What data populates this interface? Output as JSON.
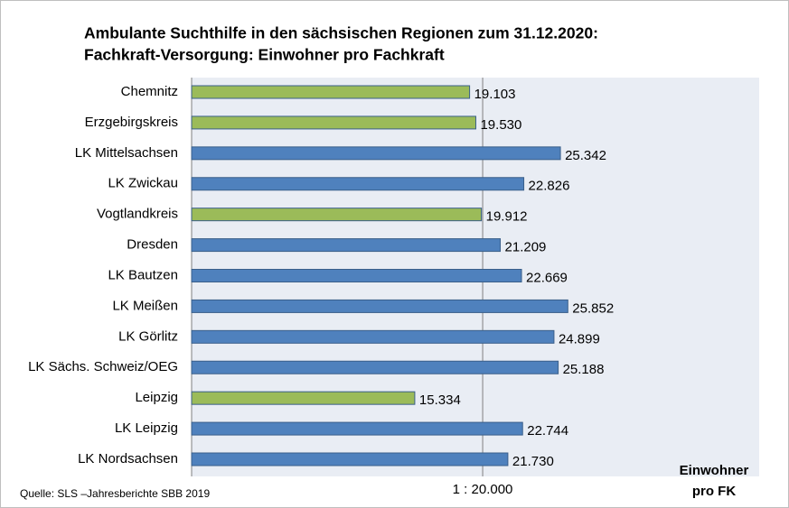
{
  "chart_data": {
    "type": "bar",
    "orientation": "horizontal",
    "title": "Ambulante Suchthilfe in den sächsischen Regionen zum 31.12.2020:",
    "subtitle": "Fachkraft-Versorgung: Einwohner pro Fachkraft",
    "categories": [
      "Chemnitz",
      "Erzgebirgskreis",
      "LK Mittelsachsen",
      "LK Zwickau",
      "Vogtlandkreis",
      "Dresden",
      "LK Bautzen",
      "LK Meißen",
      "LK Görlitz",
      "LK Sächs. Schweiz/OEG",
      "Leipzig",
      "LK Leipzig",
      "LK Nordsachsen"
    ],
    "values": [
      19103,
      19530,
      25342,
      22826,
      19912,
      21209,
      22669,
      25852,
      24899,
      25188,
      15334,
      22744,
      21730
    ],
    "value_labels": [
      "19.103",
      "19.530",
      "25.342",
      "22.826",
      "19.912",
      "21.209",
      "22.669",
      "25.852",
      "24.899",
      "25.188",
      "15.334",
      "22.744",
      "21.730"
    ],
    "colors": [
      "#9bbb59",
      "#9bbb59",
      "#4f81bd",
      "#4f81bd",
      "#9bbb59",
      "#4f81bd",
      "#4f81bd",
      "#4f81bd",
      "#4f81bd",
      "#4f81bd",
      "#9bbb59",
      "#4f81bd",
      "#4f81bd"
    ],
    "xlim": [
      0,
      39000
    ],
    "xticks": [
      {
        "value": 20000,
        "label": "1 : 20.000"
      }
    ],
    "xlabel": [
      "Einwohner",
      "pro FK"
    ],
    "source": "Quelle: SLS –Jahresberichte SBB 2019"
  }
}
